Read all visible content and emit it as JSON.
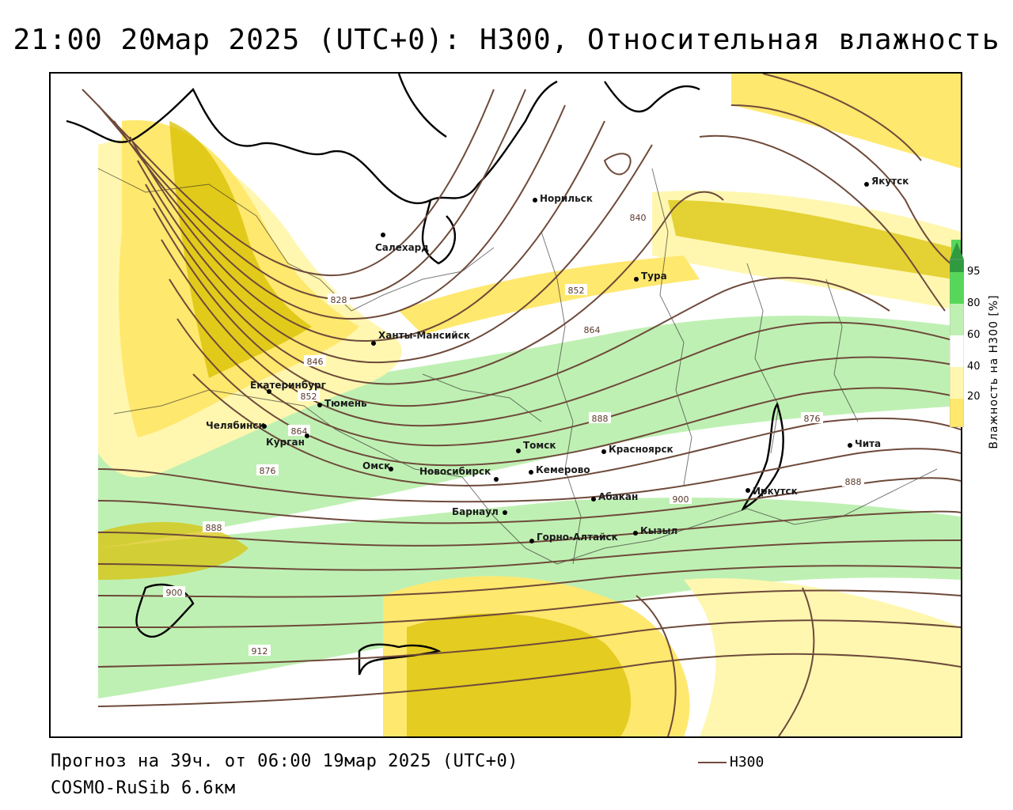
{
  "title": "21:00 20мар 2025 (UTC+0): H300, Относительная влажность",
  "forecast_text": "Прогноз на 39ч. от 06:00 19мар 2025 (UTC+0)",
  "model_text": "COSMO-RuSib 6.6км",
  "legend": {
    "series_label": "H300",
    "color": "#6e4a3a"
  },
  "colorbar": {
    "label": "Влажность на H300 [%]",
    "ticks": [
      "95",
      "80",
      "60",
      "40",
      "20"
    ],
    "colors": {
      "very_humid": "#2f9a3e",
      "humid": "#57d75a",
      "moist": "#bff0b3",
      "mid": "#ffffff",
      "dry": "#fff7b0",
      "drier": "#ffe86e",
      "driest": "#d8c000"
    }
  },
  "cities": [
    {
      "name": "Якутск"
    },
    {
      "name": "Норильск"
    },
    {
      "name": "Салехард"
    },
    {
      "name": "Тура"
    },
    {
      "name": "Ханты-Мансийск"
    },
    {
      "name": "Екатеринбург"
    },
    {
      "name": "Тюмень"
    },
    {
      "name": "Челябинск"
    },
    {
      "name": "Курган"
    },
    {
      "name": "Омск"
    },
    {
      "name": "Новосибирск"
    },
    {
      "name": "Томск"
    },
    {
      "name": "Кемерово"
    },
    {
      "name": "Красноярск"
    },
    {
      "name": "Абакан"
    },
    {
      "name": "Барнаул"
    },
    {
      "name": "Горно-Алтайск"
    },
    {
      "name": "Кызыл"
    },
    {
      "name": "Иркутск"
    },
    {
      "name": "Чита"
    }
  ],
  "contour_labels": [
    "840",
    "828",
    "852",
    "864",
    "846",
    "852",
    "864",
    "876",
    "876",
    "888",
    "888",
    "888",
    "900",
    "900",
    "912"
  ]
}
